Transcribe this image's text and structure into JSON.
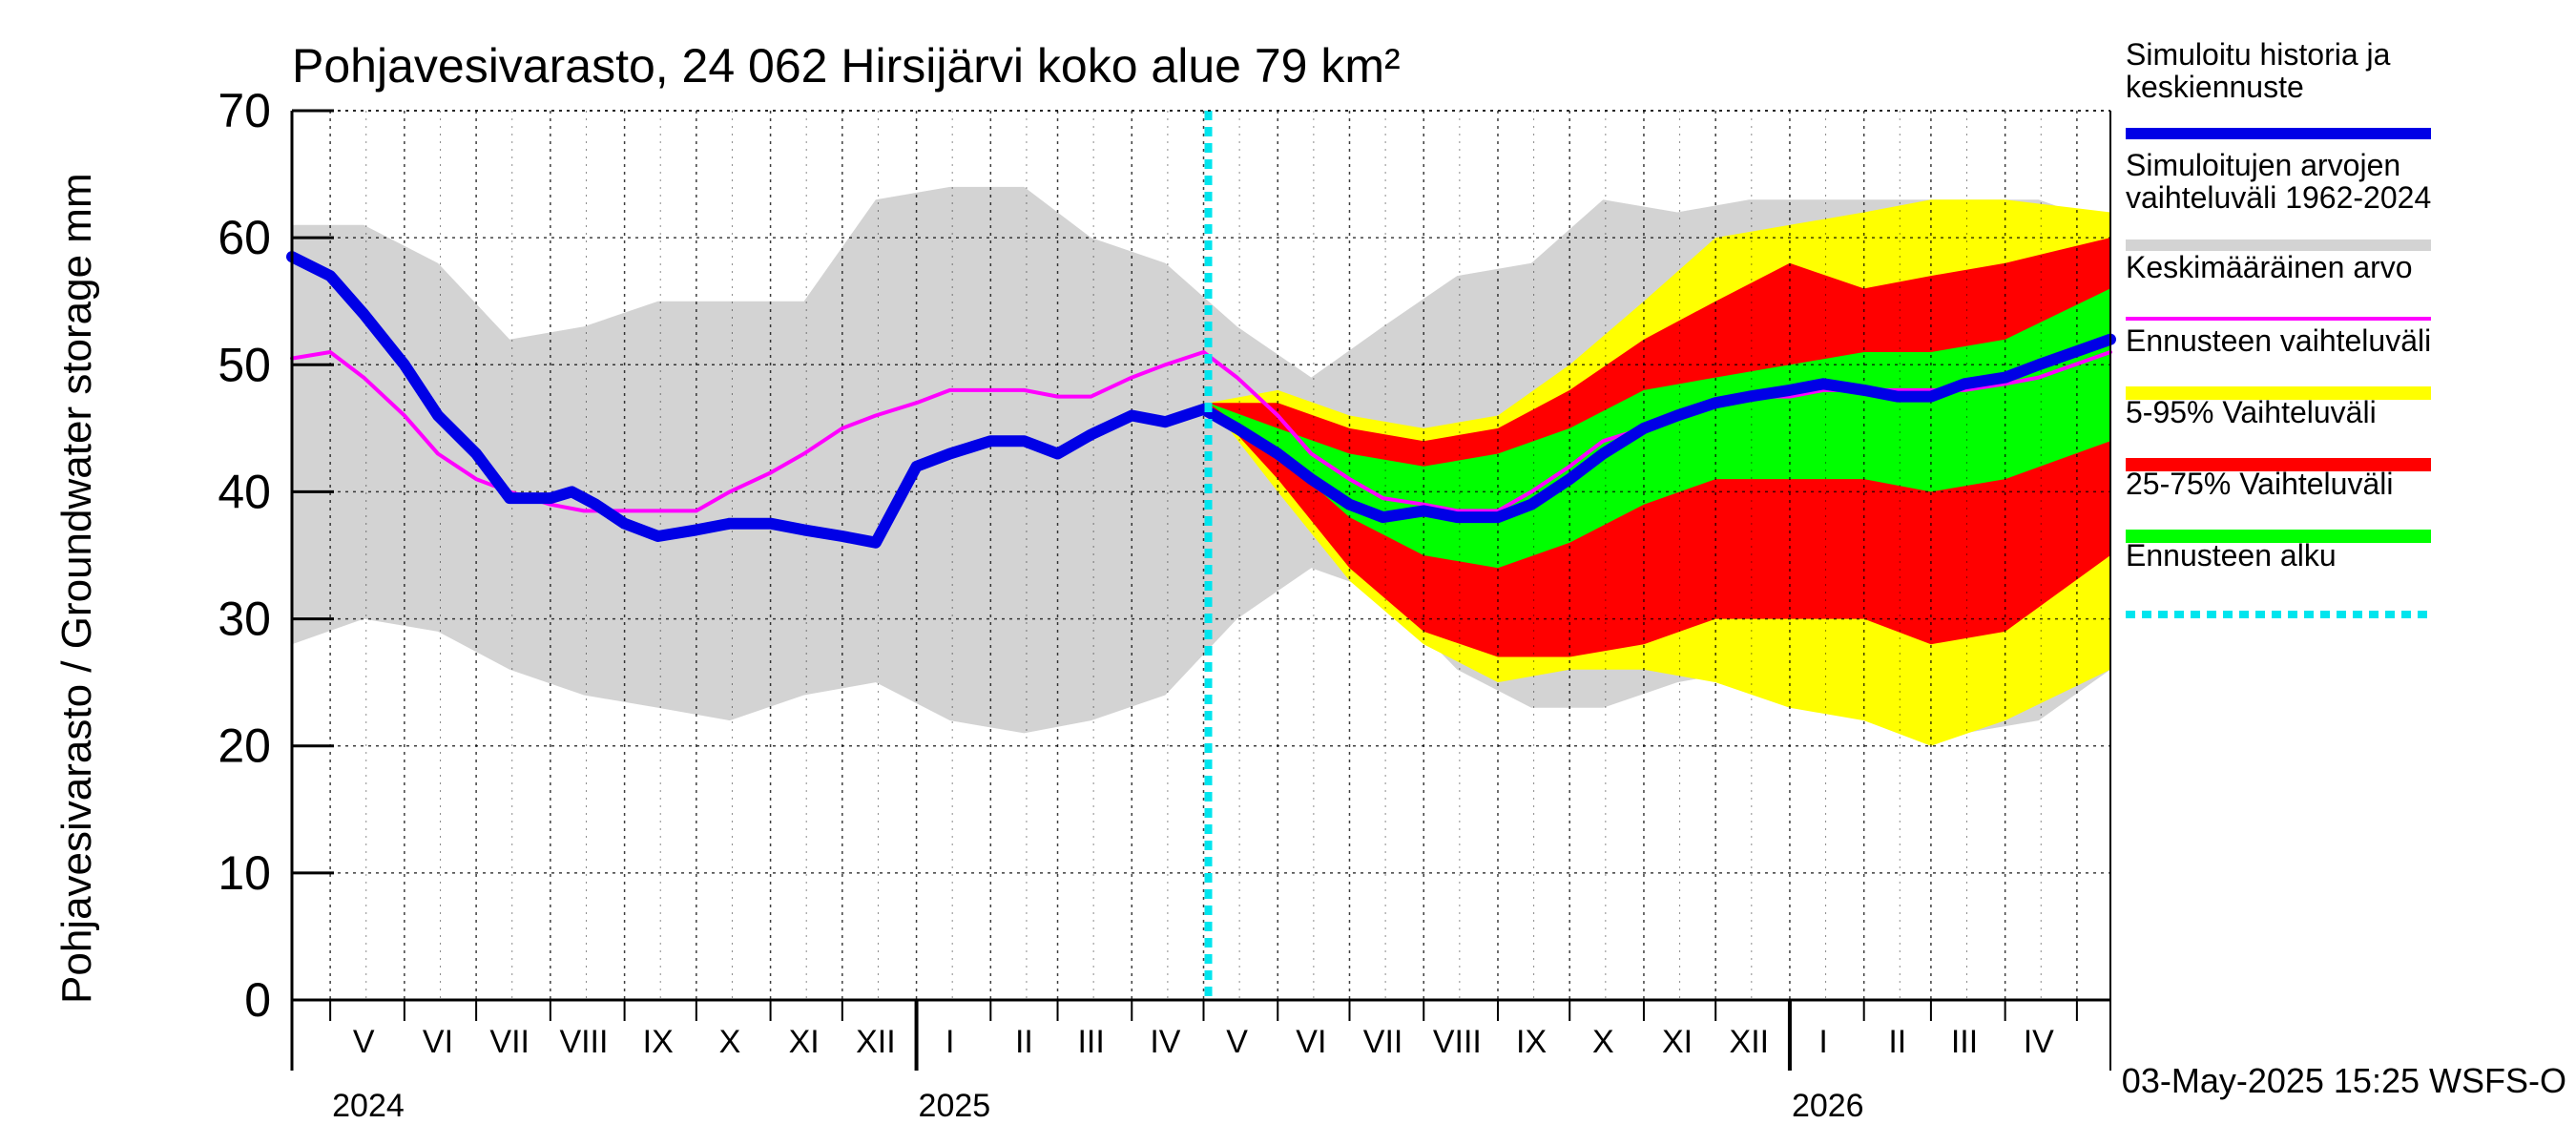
{
  "chart_data": {
    "type": "area",
    "title": "Pohjavesivarasto, 24 062 Hirsijärvi koko alue 79 km²",
    "ylabel": "Pohjavesivarasto / Groundwater storage   mm",
    "ylim": [
      0,
      70
    ],
    "yticks": [
      0,
      10,
      20,
      30,
      40,
      50,
      60,
      70
    ],
    "grid": true,
    "legend_position": "right",
    "x_start": "2024-04-15",
    "x_end": "2026-05-15",
    "months": [
      {
        "label": "V",
        "date": "2024-05-15"
      },
      {
        "label": "VI",
        "date": "2024-06-15"
      },
      {
        "label": "VII",
        "date": "2024-07-15"
      },
      {
        "label": "VIII",
        "date": "2024-08-15"
      },
      {
        "label": "IX",
        "date": "2024-09-15"
      },
      {
        "label": "X",
        "date": "2024-10-15"
      },
      {
        "label": "XI",
        "date": "2024-11-15"
      },
      {
        "label": "XII",
        "date": "2024-12-15"
      },
      {
        "label": "I",
        "date": "2025-01-15"
      },
      {
        "label": "II",
        "date": "2025-02-15"
      },
      {
        "label": "III",
        "date": "2025-03-15"
      },
      {
        "label": "IV",
        "date": "2025-04-15"
      },
      {
        "label": "V",
        "date": "2025-05-15"
      },
      {
        "label": "VI",
        "date": "2025-06-15"
      },
      {
        "label": "VII",
        "date": "2025-07-15"
      },
      {
        "label": "VIII",
        "date": "2025-08-15"
      },
      {
        "label": "IX",
        "date": "2025-09-15"
      },
      {
        "label": "X",
        "date": "2025-10-15"
      },
      {
        "label": "XI",
        "date": "2025-11-15"
      },
      {
        "label": "XII",
        "date": "2025-12-15"
      },
      {
        "label": "I",
        "date": "2026-01-15"
      },
      {
        "label": "II",
        "date": "2026-02-15"
      },
      {
        "label": "III",
        "date": "2026-03-15"
      },
      {
        "label": "IV",
        "date": "2026-04-15"
      }
    ],
    "years": [
      {
        "label": "2024",
        "date": "2024-05-01"
      },
      {
        "label": "2025",
        "date": "2025-01-01"
      },
      {
        "label": "2026",
        "date": "2026-01-01"
      }
    ],
    "forecast_start": "2025-05-03",
    "timestamp": "03-May-2025 15:25 WSFS-O",
    "colors": {
      "history": "#0000e6",
      "historical_range": "#d3d3d3",
      "mean": "#ff00ff",
      "forecast_range": "#ffff00",
      "p5_95": "#ff0000",
      "p25_75": "#00ff00",
      "forecast_start": "#00e5ee"
    },
    "legend": [
      {
        "label": "Simuloitu historia ja keskiennuste",
        "key": "history"
      },
      {
        "label": "Simuloitujen arvojen vaihteluväli 1962-2024",
        "key": "historical_range"
      },
      {
        "label": "Keskimääräinen arvo",
        "key": "mean"
      },
      {
        "label": "Ennusteen vaihteluväli",
        "key": "forecast_range"
      },
      {
        "label": "5-95% Vaihteluväli",
        "key": "p5_95"
      },
      {
        "label": "25-75% Vaihteluväli",
        "key": "p25_75"
      },
      {
        "label": "Ennusteen alku",
        "key": "forecast_start"
      }
    ],
    "series": [
      {
        "name": "Simuloitujen arvojen vaihteluväli 1962-2024",
        "kind": "band",
        "x": [
          "2024-04-15",
          "2024-05-15",
          "2024-06-15",
          "2024-07-15",
          "2024-08-15",
          "2024-09-15",
          "2024-10-15",
          "2024-11-15",
          "2024-12-15",
          "2025-01-15",
          "2025-02-15",
          "2025-03-15",
          "2025-04-15",
          "2025-05-15",
          "2025-06-15",
          "2025-07-15",
          "2025-08-15",
          "2025-09-15",
          "2025-10-15",
          "2025-11-15",
          "2025-12-15",
          "2026-01-15",
          "2026-02-15",
          "2026-03-15",
          "2026-04-15",
          "2026-05-15"
        ],
        "lower": [
          28,
          30,
          29,
          26,
          24,
          23,
          22,
          24,
          25,
          22,
          21,
          22,
          24,
          30,
          34,
          32,
          26,
          23,
          23,
          25,
          26,
          23,
          22,
          21,
          22,
          26
        ],
        "upper": [
          61,
          61,
          58,
          52,
          53,
          55,
          55,
          55,
          63,
          64,
          64,
          60,
          58,
          53,
          49,
          53,
          57,
          58,
          63,
          62,
          63,
          63,
          63,
          63,
          63,
          61
        ]
      },
      {
        "name": "Ennusteen vaihteluväli",
        "kind": "band",
        "x": [
          "2025-05-03",
          "2025-06-01",
          "2025-07-01",
          "2025-08-01",
          "2025-09-01",
          "2025-10-01",
          "2025-11-01",
          "2025-12-01",
          "2026-01-01",
          "2026-02-01",
          "2026-03-01",
          "2026-04-01",
          "2026-05-15"
        ],
        "lower": [
          47,
          40,
          33,
          28,
          25,
          26,
          26,
          25,
          23,
          22,
          20,
          22,
          26
        ],
        "upper": [
          47,
          48,
          46,
          45,
          46,
          50,
          55,
          60,
          61,
          62,
          63,
          63,
          62
        ]
      },
      {
        "name": "5-95% Vaihteluväli",
        "kind": "band",
        "x": [
          "2025-05-03",
          "2025-06-01",
          "2025-07-01",
          "2025-08-01",
          "2025-09-01",
          "2025-10-01",
          "2025-11-01",
          "2025-12-01",
          "2026-01-01",
          "2026-02-01",
          "2026-03-01",
          "2026-04-01",
          "2026-05-15"
        ],
        "lower": [
          47,
          41,
          34,
          29,
          27,
          27,
          28,
          30,
          30,
          30,
          28,
          29,
          35
        ],
        "upper": [
          47,
          47,
          45,
          44,
          45,
          48,
          52,
          55,
          58,
          56,
          57,
          58,
          60
        ]
      },
      {
        "name": "25-75% Vaihteluväli",
        "kind": "band",
        "x": [
          "2025-05-03",
          "2025-06-01",
          "2025-07-01",
          "2025-08-01",
          "2025-09-01",
          "2025-10-01",
          "2025-11-01",
          "2025-12-01",
          "2026-01-01",
          "2026-02-01",
          "2026-03-01",
          "2026-04-01",
          "2026-05-15"
        ],
        "lower": [
          47,
          43,
          38,
          35,
          34,
          36,
          39,
          41,
          41,
          41,
          40,
          41,
          44
        ],
        "upper": [
          47,
          45,
          43,
          42,
          43,
          45,
          48,
          49,
          50,
          51,
          51,
          52,
          56
        ]
      },
      {
        "name": "Simuloitu historia ja keskiennuste",
        "kind": "line",
        "x": [
          "2024-04-15",
          "2024-05-01",
          "2024-05-15",
          "2024-06-01",
          "2024-06-15",
          "2024-07-01",
          "2024-07-15",
          "2024-08-01",
          "2024-08-10",
          "2024-08-20",
          "2024-09-01",
          "2024-09-15",
          "2024-10-01",
          "2024-10-15",
          "2024-11-01",
          "2024-11-15",
          "2024-12-01",
          "2024-12-15",
          "2025-01-01",
          "2025-01-15",
          "2025-02-01",
          "2025-02-15",
          "2025-03-01",
          "2025-03-15",
          "2025-04-01",
          "2025-04-15",
          "2025-05-01",
          "2025-05-15",
          "2025-06-01",
          "2025-06-15",
          "2025-07-01",
          "2025-07-15",
          "2025-08-01",
          "2025-08-15",
          "2025-09-01",
          "2025-09-15",
          "2025-10-01",
          "2025-10-15",
          "2025-11-01",
          "2025-11-15",
          "2025-12-01",
          "2025-12-15",
          "2026-01-01",
          "2026-01-15",
          "2026-02-01",
          "2026-02-15",
          "2026-03-01",
          "2026-03-15",
          "2026-04-01",
          "2026-04-15",
          "2026-05-15"
        ],
        "y": [
          58.5,
          57,
          54,
          50,
          46,
          43,
          39.5,
          39.5,
          40,
          39,
          37.5,
          36.5,
          37,
          37.5,
          37.5,
          37,
          36.5,
          36,
          42,
          43,
          44,
          44,
          43,
          44.5,
          46,
          45.5,
          46.5,
          45,
          43,
          41,
          39,
          38,
          38.5,
          38,
          38,
          39,
          41,
          43,
          45,
          46,
          47,
          47.5,
          48,
          48.5,
          48,
          47.5,
          47.5,
          48.5,
          49,
          50,
          52
        ]
      },
      {
        "name": "Keskimääräinen arvo",
        "kind": "line",
        "x": [
          "2024-04-15",
          "2024-05-01",
          "2024-05-15",
          "2024-06-01",
          "2024-06-15",
          "2024-07-01",
          "2024-07-15",
          "2024-08-01",
          "2024-08-15",
          "2024-09-01",
          "2024-09-15",
          "2024-10-01",
          "2024-10-15",
          "2024-11-01",
          "2024-11-15",
          "2024-12-01",
          "2024-12-15",
          "2025-01-01",
          "2025-01-15",
          "2025-02-01",
          "2025-02-15",
          "2025-03-01",
          "2025-03-15",
          "2025-04-01",
          "2025-04-15",
          "2025-05-01",
          "2025-05-15",
          "2025-06-01",
          "2025-06-15",
          "2025-07-01",
          "2025-07-15",
          "2025-08-01",
          "2025-08-15",
          "2025-09-01",
          "2025-09-15",
          "2025-10-01",
          "2025-10-15",
          "2025-11-01",
          "2025-11-15",
          "2025-12-01",
          "2025-12-15",
          "2026-01-01",
          "2026-01-15",
          "2026-02-01",
          "2026-02-15",
          "2026-03-01",
          "2026-03-15",
          "2026-04-01",
          "2026-04-15",
          "2026-05-15"
        ],
        "y": [
          50.5,
          51,
          49,
          46,
          43,
          41,
          40,
          39,
          38.5,
          38.5,
          38.5,
          38.5,
          40,
          41.5,
          43,
          45,
          46,
          47,
          48,
          48,
          48,
          47.5,
          47.5,
          49,
          50,
          51,
          49,
          46,
          43,
          41,
          39.5,
          39,
          38.5,
          38.5,
          40,
          42,
          44,
          45,
          46,
          47,
          47.5,
          47.5,
          48,
          48,
          48,
          48,
          48,
          48.5,
          49,
          51
        ]
      }
    ]
  }
}
